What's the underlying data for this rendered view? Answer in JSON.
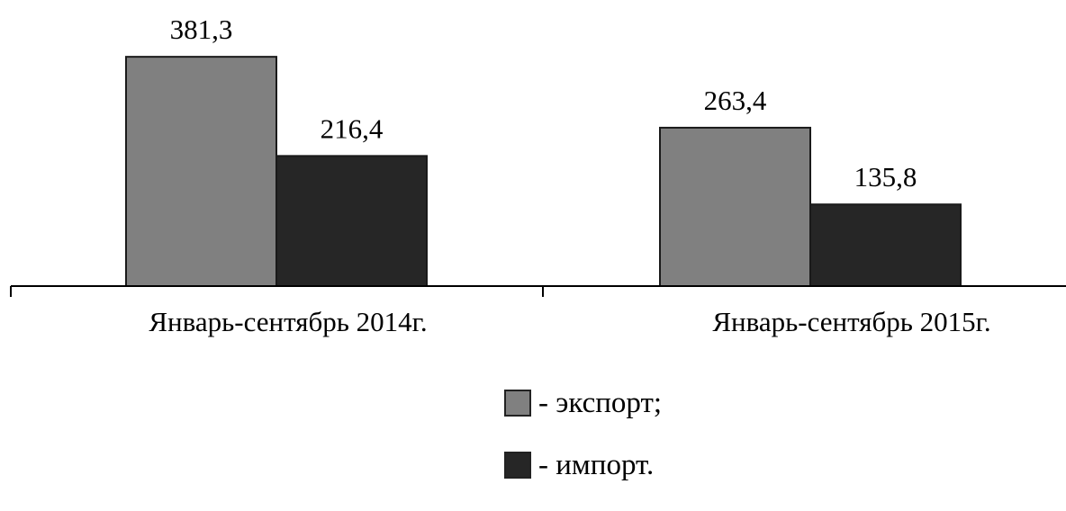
{
  "chart_data": {
    "type": "bar",
    "categories": [
      "Январь-сентябрь 2014г.",
      "Январь-сентябрь 2015г."
    ],
    "series": [
      {
        "name": "- экспорт;",
        "values": [
          381.3,
          263.4
        ],
        "labels": [
          "381,3",
          "263,4"
        ],
        "color": "#808080"
      },
      {
        "name": "- импорт.",
        "values": [
          216.4,
          135.8
        ],
        "labels": [
          "216,4",
          "135,8"
        ],
        "color": "#262626"
      }
    ],
    "ylim": [
      0,
      400
    ],
    "grid": false,
    "legend_position": "bottom"
  }
}
